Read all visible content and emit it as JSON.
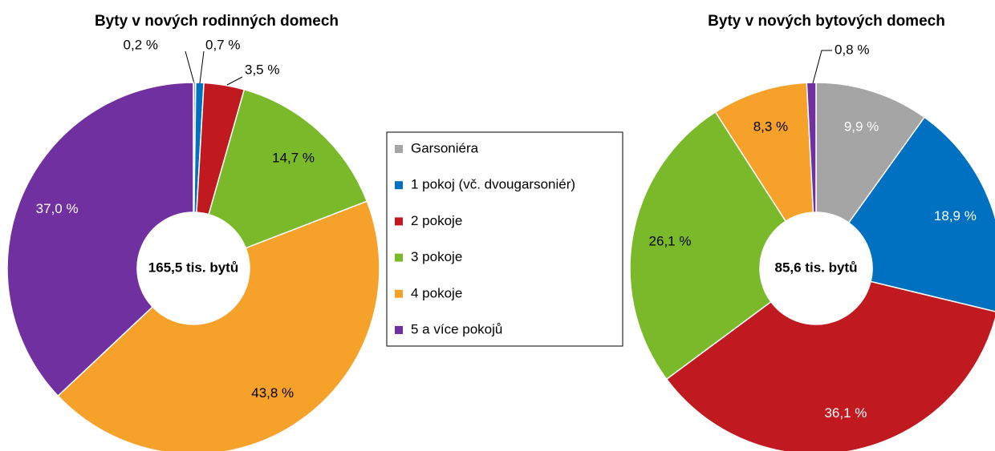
{
  "chart_data": [
    {
      "type": "pie",
      "title": "Byty v nových rodinných domech",
      "center_label": "165,5 tis. bytů",
      "categories": [
        "Garsoniéra",
        "1 pokoj (vč. dvougarsoniér)",
        "2 pokoje",
        "3 pokoje",
        "4 pokoje",
        "5 a více pokojů"
      ],
      "values": [
        0.2,
        0.7,
        3.5,
        14.7,
        43.8,
        37.0
      ],
      "value_labels": [
        "0,2 %",
        "0,7 %",
        "3,5 %",
        "14,7 %",
        "43,8 %",
        "37,0 %"
      ],
      "colors": [
        "#a5a5a5",
        "#0070c0",
        "#c0191f",
        "#7ab929",
        "#f5a12a",
        "#7030a0"
      ],
      "label_colors": [
        "#000000",
        "#000000",
        "#000000",
        "#000000",
        "#000000",
        "#ffffff"
      ],
      "legend": true
    },
    {
      "type": "pie",
      "title": "Byty v nových bytových domech",
      "center_label": "85,6 tis. bytů",
      "categories": [
        "Garsoniéra",
        "1 pokoj (vč. dvougarsoniér)",
        "2 pokoje",
        "3 pokoje",
        "4 pokoje",
        "5 a více pokojů"
      ],
      "values": [
        9.9,
        18.9,
        36.1,
        26.1,
        8.3,
        0.8
      ],
      "value_labels": [
        "9,9 %",
        "18,9 %",
        "36,1 %",
        "26,1 %",
        "8,3 %",
        "0,8 %"
      ],
      "colors": [
        "#a5a5a5",
        "#0070c0",
        "#c0191f",
        "#7ab929",
        "#f5a12a",
        "#7030a0"
      ],
      "label_colors": [
        "#ffffff",
        "#ffffff",
        "#ffffff",
        "#000000",
        "#000000",
        "#000000"
      ],
      "legend": false
    }
  ]
}
